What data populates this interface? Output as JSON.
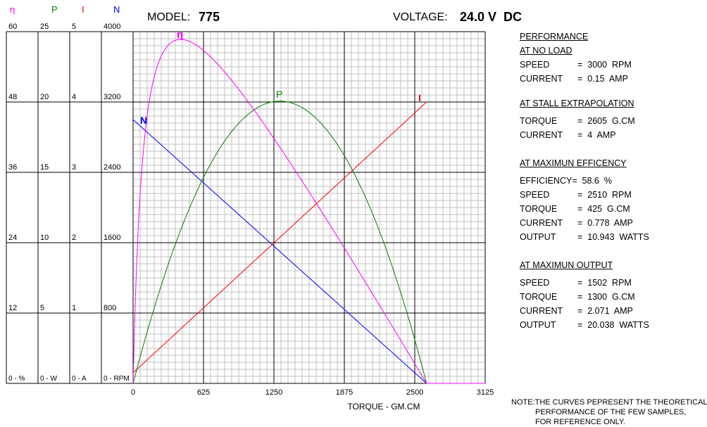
{
  "header": {
    "model_label": "MODEL:",
    "model_value": "775",
    "voltage_label": "VOLTAGE:",
    "voltage_value": "24.0 V  DC"
  },
  "chart_data": {
    "type": "line",
    "xlabel": "TORQUE - GM.CM",
    "x_ticks": [
      "0",
      "625",
      "1250",
      "1875",
      "2500",
      "3125"
    ],
    "xlim": [
      0,
      3125
    ],
    "axes": [
      {
        "symbol": "η",
        "color": "#ff00ff",
        "unit_label": "0 - %",
        "ticks": [
          "12",
          "24",
          "36",
          "48",
          "60"
        ],
        "max": 60
      },
      {
        "symbol": "P",
        "color": "#008000",
        "unit_label": "0 - W",
        "ticks": [
          "5",
          "10",
          "15",
          "20",
          "25"
        ],
        "max": 25
      },
      {
        "symbol": "I",
        "color": "#ff0000",
        "unit_label": "0 - A",
        "ticks": [
          "1",
          "2",
          "3",
          "4",
          "5"
        ],
        "max": 5
      },
      {
        "symbol": "N",
        "color": "#0000ff",
        "unit_label": "0 - RPM",
        "ticks": [
          "800",
          "1600",
          "2400",
          "3200",
          "4000"
        ],
        "max": 4000
      }
    ],
    "motor": {
      "no_load_speed_rpm": 3000,
      "no_load_current_a": 0.15,
      "stall_torque_gcm": 2605,
      "stall_current_a": 4
    },
    "series": [
      {
        "name": "N",
        "label": "N",
        "unit": "RPM",
        "color": "#0000ff"
      },
      {
        "name": "I",
        "label": "I",
        "unit": "A",
        "color": "#ff0000"
      },
      {
        "name": "P",
        "label": "P",
        "unit": "W",
        "color": "#008000"
      },
      {
        "name": "η",
        "label": "η",
        "unit": "%",
        "color": "#ff00ff"
      }
    ]
  },
  "performance": {
    "title_line1": "PERFORMANCE",
    "no_load": {
      "heading": "AT NO LOAD",
      "rows": [
        {
          "label": "SPEED",
          "value": "=  3000  RPM"
        },
        {
          "label": "CURRENT",
          "value": "=  0.15  AMP"
        }
      ]
    },
    "stall": {
      "heading": "AT STALL EXTRAPOLATION",
      "rows": [
        {
          "label": "TORQUE",
          "value": "=  2605  G.CM"
        },
        {
          "label": "CURRENT",
          "value": "=  4  AMP"
        }
      ]
    },
    "max_eff": {
      "heading": "AT MAXIMUN EFFICENCY",
      "rows": [
        {
          "label": "EFFICIENCY",
          "value": "=  58.6  %"
        },
        {
          "label": "SPEED",
          "value": "=  2510  RPM"
        },
        {
          "label": "TORQUE",
          "value": "=  425  G.CM"
        },
        {
          "label": "CURRENT",
          "value": "=  0.778  AMP"
        },
        {
          "label": "OUTPUT",
          "value": "=  10.943  WATTS"
        }
      ]
    },
    "max_out": {
      "heading": "AT MAXIMUN OUTPUT",
      "rows": [
        {
          "label": "SPEED",
          "value": "=  1502  RPM"
        },
        {
          "label": "TORQUE",
          "value": "=  1300  G.CM"
        },
        {
          "label": "CURRENT",
          "value": "=  2.071  AMP"
        },
        {
          "label": "OUTPUT",
          "value": "=  20.038  WATTS"
        }
      ]
    }
  },
  "note": {
    "line1": "NOTE:THE CURVES PEPRESENT THE THEORETICAL",
    "line2": "PERFORMANCE OF THE FEW SAMPLES,",
    "line3": "FOR REFERENCE ONLY."
  }
}
